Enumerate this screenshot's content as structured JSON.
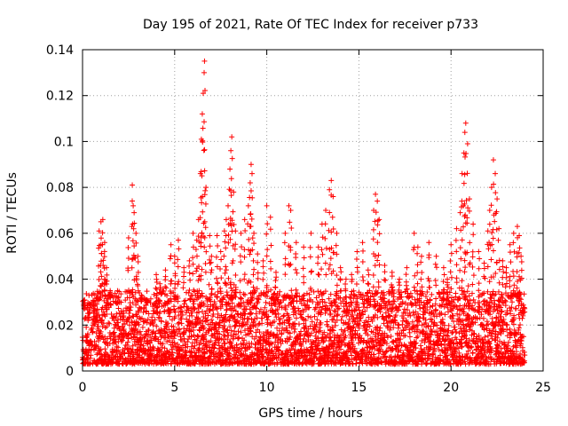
{
  "chart_data": {
    "type": "scatter",
    "title": "Day 195 of 2021, Rate Of TEC Index for receiver p733",
    "xlabel": "GPS time / hours",
    "ylabel": "ROTI / TECUs",
    "xlim": [
      0,
      25
    ],
    "ylim": [
      0,
      0.14
    ],
    "x_ticks": [
      0,
      5,
      10,
      15,
      20,
      25
    ],
    "x_tick_labels": [
      "0",
      "5",
      "10",
      "15",
      "20",
      "25"
    ],
    "y_ticks": [
      0,
      0.02,
      0.04,
      0.06,
      0.08,
      0.1,
      0.12,
      0.14
    ],
    "y_tick_labels": [
      "0",
      "0.02",
      "0.04",
      "0.06",
      "0.08",
      "0.1",
      "0.12",
      "0.14"
    ],
    "grid": true,
    "marker": "plus",
    "marker_color": "#ff0000",
    "series": [
      {
        "points": [
          [
            0.1,
            0.027
          ],
          [
            0.3,
            0.022
          ],
          [
            0.6,
            0.026
          ],
          [
            0.8,
            0.024
          ],
          [
            0.9,
            0.061
          ],
          [
            1.0,
            0.065
          ],
          [
            1.1,
            0.066
          ],
          [
            1.2,
            0.056
          ],
          [
            1.3,
            0.045
          ],
          [
            1.0,
            0.055
          ],
          [
            1.2,
            0.04
          ],
          [
            1.5,
            0.035
          ],
          [
            2.0,
            0.03
          ],
          [
            2.5,
            0.058
          ],
          [
            2.7,
            0.081
          ],
          [
            2.75,
            0.072
          ],
          [
            2.8,
            0.069
          ],
          [
            2.9,
            0.06
          ],
          [
            3.0,
            0.05
          ],
          [
            3.2,
            0.033
          ],
          [
            3.5,
            0.031
          ],
          [
            4.0,
            0.042
          ],
          [
            4.2,
            0.038
          ],
          [
            4.5,
            0.044
          ],
          [
            4.8,
            0.055
          ],
          [
            5.0,
            0.05
          ],
          [
            5.2,
            0.057
          ],
          [
            5.5,
            0.045
          ],
          [
            5.8,
            0.048
          ],
          [
            6.0,
            0.06
          ],
          [
            6.2,
            0.057
          ],
          [
            6.3,
            0.066
          ],
          [
            6.4,
            0.086
          ],
          [
            6.45,
            0.101
          ],
          [
            6.5,
            0.112
          ],
          [
            6.55,
            0.121
          ],
          [
            6.6,
            0.13
          ],
          [
            6.62,
            0.135
          ],
          [
            6.7,
            0.08
          ],
          [
            6.9,
            0.059
          ],
          [
            7.0,
            0.05
          ],
          [
            7.3,
            0.059
          ],
          [
            7.5,
            0.052
          ],
          [
            7.7,
            0.061
          ],
          [
            7.8,
            0.066
          ],
          [
            7.9,
            0.072
          ],
          [
            8.0,
            0.088
          ],
          [
            8.05,
            0.096
          ],
          [
            8.1,
            0.102
          ],
          [
            8.2,
            0.078
          ],
          [
            8.3,
            0.061
          ],
          [
            8.6,
            0.06
          ],
          [
            8.8,
            0.066
          ],
          [
            9.0,
            0.072
          ],
          [
            9.1,
            0.082
          ],
          [
            9.15,
            0.09
          ],
          [
            9.2,
            0.086
          ],
          [
            9.3,
            0.06
          ],
          [
            9.5,
            0.051
          ],
          [
            9.8,
            0.048
          ],
          [
            10.0,
            0.072
          ],
          [
            10.2,
            0.067
          ],
          [
            10.5,
            0.043
          ],
          [
            11.0,
            0.06
          ],
          [
            11.2,
            0.072
          ],
          [
            11.3,
            0.07
          ],
          [
            11.6,
            0.056
          ],
          [
            12.0,
            0.054
          ],
          [
            12.4,
            0.06
          ],
          [
            12.8,
            0.054
          ],
          [
            13.0,
            0.064
          ],
          [
            13.2,
            0.07
          ],
          [
            13.4,
            0.079
          ],
          [
            13.5,
            0.083
          ],
          [
            13.6,
            0.076
          ],
          [
            13.8,
            0.06
          ],
          [
            14.0,
            0.045
          ],
          [
            14.3,
            0.04
          ],
          [
            14.6,
            0.042
          ],
          [
            14.9,
            0.052
          ],
          [
            15.2,
            0.056
          ],
          [
            15.5,
            0.044
          ],
          [
            15.8,
            0.07
          ],
          [
            15.9,
            0.077
          ],
          [
            16.0,
            0.074
          ],
          [
            16.1,
            0.066
          ],
          [
            16.4,
            0.046
          ],
          [
            16.8,
            0.043
          ],
          [
            17.2,
            0.04
          ],
          [
            17.6,
            0.045
          ],
          [
            18.0,
            0.06
          ],
          [
            18.2,
            0.054
          ],
          [
            18.4,
            0.05
          ],
          [
            18.8,
            0.056
          ],
          [
            19.2,
            0.05
          ],
          [
            19.6,
            0.045
          ],
          [
            19.8,
            0.04
          ],
          [
            20.0,
            0.055
          ],
          [
            20.3,
            0.062
          ],
          [
            20.5,
            0.069
          ],
          [
            20.6,
            0.086
          ],
          [
            20.7,
            0.095
          ],
          [
            20.75,
            0.104
          ],
          [
            20.8,
            0.108
          ],
          [
            20.9,
            0.099
          ],
          [
            21.0,
            0.075
          ],
          [
            21.2,
            0.064
          ],
          [
            21.5,
            0.052
          ],
          [
            21.8,
            0.047
          ],
          [
            22.0,
            0.061
          ],
          [
            22.1,
            0.07
          ],
          [
            22.2,
            0.08
          ],
          [
            22.3,
            0.092
          ],
          [
            22.4,
            0.086
          ],
          [
            22.5,
            0.075
          ],
          [
            22.6,
            0.062
          ],
          [
            22.8,
            0.048
          ],
          [
            23.0,
            0.045
          ],
          [
            23.2,
            0.055
          ],
          [
            23.4,
            0.06
          ],
          [
            23.6,
            0.063
          ],
          [
            23.7,
            0.059
          ],
          [
            23.8,
            0.05
          ]
        ]
      }
    ],
    "dense_band": {
      "x_range": [
        0,
        24
      ],
      "y_range": [
        0.003,
        0.035
      ],
      "description_note": ""
    }
  }
}
